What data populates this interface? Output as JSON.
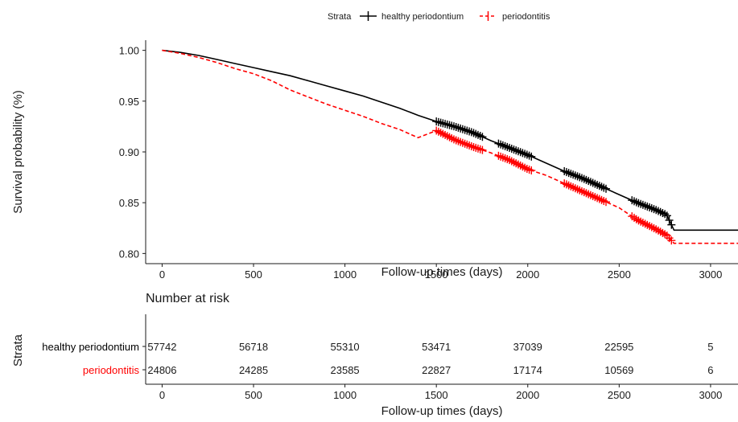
{
  "chart_data": [
    {
      "type": "line",
      "title": "",
      "legend": {
        "title": "Strata",
        "placement": "top-center",
        "entries": [
          "healthy periodontium",
          "periodontitis"
        ]
      },
      "xlabel": "Follow-up times (days)",
      "ylabel": "Survival probability (%)",
      "xlim": [
        -90,
        3150
      ],
      "ylim": [
        0.79,
        1.01
      ],
      "xticks": [
        0,
        500,
        1000,
        1500,
        2000,
        2500,
        3000
      ],
      "xtick_labels": [
        "0",
        "500",
        "1000",
        "1500",
        "2000",
        "2500",
        "3000"
      ],
      "yticks": [
        0.8,
        0.85,
        0.9,
        0.95,
        1.0
      ],
      "ytick_labels": [
        "0.80",
        "0.85",
        "0.90",
        "0.95",
        "1.00"
      ],
      "grid": false,
      "series": [
        {
          "name": "healthy periodontium",
          "color": "#000000",
          "line_style": "solid",
          "x": [
            0,
            100,
            200,
            300,
            400,
            500,
            600,
            700,
            800,
            900,
            1000,
            1100,
            1200,
            1300,
            1400,
            1500,
            1600,
            1700,
            1800,
            1900,
            2000,
            2100,
            2200,
            2300,
            2400,
            2500,
            2600,
            2700,
            2760,
            2800,
            3150
          ],
          "y": [
            1.0,
            0.998,
            0.995,
            0.991,
            0.987,
            0.983,
            0.979,
            0.975,
            0.97,
            0.965,
            0.96,
            0.955,
            0.949,
            0.943,
            0.936,
            0.93,
            0.925,
            0.919,
            0.911,
            0.904,
            0.897,
            0.889,
            0.881,
            0.874,
            0.866,
            0.858,
            0.85,
            0.843,
            0.838,
            0.823,
            0.823
          ],
          "censor_segments": [
            [
              1500,
              1760
            ],
            [
              1840,
              2030
            ],
            [
              2200,
              2430
            ],
            [
              2570,
              2790
            ]
          ]
        },
        {
          "name": "periodontitis",
          "color": "#ff0000",
          "line_style": "dashed",
          "x": [
            0,
            100,
            200,
            300,
            400,
            500,
            600,
            700,
            800,
            900,
            1000,
            1100,
            1200,
            1300,
            1400,
            1500,
            1600,
            1700,
            1800,
            1900,
            2000,
            2100,
            2200,
            2300,
            2400,
            2500,
            2600,
            2700,
            2760,
            2800,
            3150
          ],
          "y": [
            1.0,
            0.997,
            0.993,
            0.988,
            0.982,
            0.977,
            0.97,
            0.961,
            0.954,
            0.947,
            0.941,
            0.935,
            0.928,
            0.922,
            0.914,
            0.921,
            0.912,
            0.905,
            0.899,
            0.892,
            0.883,
            0.877,
            0.869,
            0.861,
            0.853,
            0.845,
            0.833,
            0.824,
            0.818,
            0.81,
            0.81
          ],
          "censor_segments": [
            [
              1500,
              1760
            ],
            [
              1840,
              2030
            ],
            [
              2200,
              2430
            ],
            [
              2570,
              2790
            ]
          ]
        }
      ]
    },
    {
      "type": "table",
      "title": "Number at risk",
      "ylabel": "Strata",
      "xlabel": "Follow-up times (days)",
      "xlim": [
        -90,
        3150
      ],
      "xticks": [
        0,
        500,
        1000,
        1500,
        2000,
        2500,
        3000
      ],
      "xtick_labels": [
        "0",
        "500",
        "1000",
        "1500",
        "2000",
        "2500",
        "3000"
      ],
      "rows": [
        {
          "label": "healthy periodontium",
          "color": "#000000",
          "values": [
            "57742",
            "56718",
            "55310",
            "53471",
            "37039",
            "22595",
            "5"
          ]
        },
        {
          "label": "periodontitis",
          "color": "#ff0000",
          "values": [
            "24806",
            "24285",
            "23585",
            "22827",
            "17174",
            "10569",
            "6"
          ]
        }
      ]
    }
  ]
}
